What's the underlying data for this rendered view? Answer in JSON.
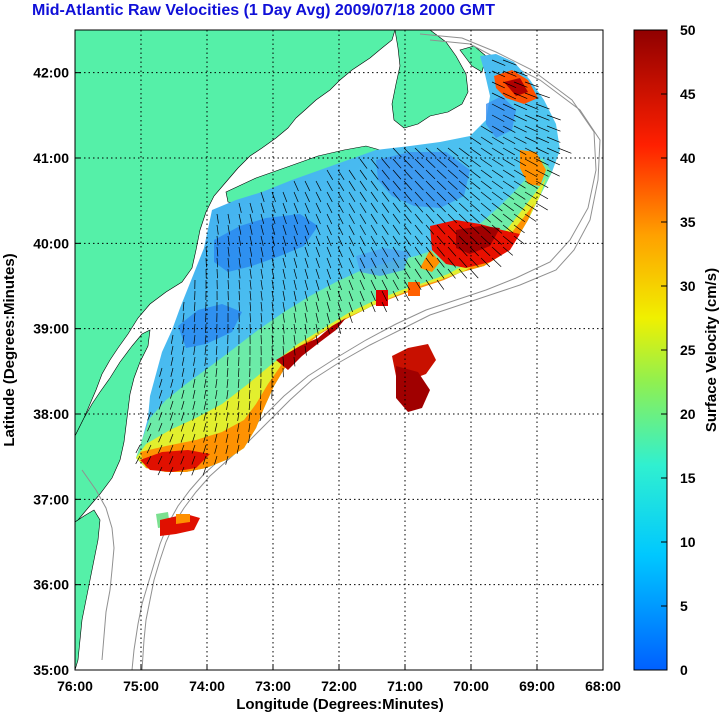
{
  "title": "Mid-Atlantic Raw Velocities (1 Day Avg) 2009/07/18 2000 GMT",
  "x_axis": {
    "label": "Longitude (Degrees:Minutes)",
    "ticks": [
      "76:00",
      "75:00",
      "74:00",
      "73:00",
      "72:00",
      "71:00",
      "70:00",
      "69:00",
      "68:00"
    ]
  },
  "y_axis": {
    "label": "Latitude (Degrees:Minutes)",
    "ticks": [
      "35:00",
      "36:00",
      "37:00",
      "38:00",
      "39:00",
      "40:00",
      "41:00",
      "42:00"
    ]
  },
  "colorbar": {
    "label": "Surface Velocity (cm/s)",
    "ticks": [
      "0",
      "5",
      "10",
      "15",
      "20",
      "25",
      "30",
      "35",
      "40",
      "45",
      "50"
    ],
    "range": [
      0,
      50
    ]
  },
  "colors": {
    "land": "#55f0a8",
    "title": "#1010d8",
    "bathymetry": "#909090"
  },
  "chart_data": {
    "type": "heatmap",
    "xlim": [
      -76,
      -68
    ],
    "ylim": [
      35,
      42.5
    ],
    "grid": true
  }
}
